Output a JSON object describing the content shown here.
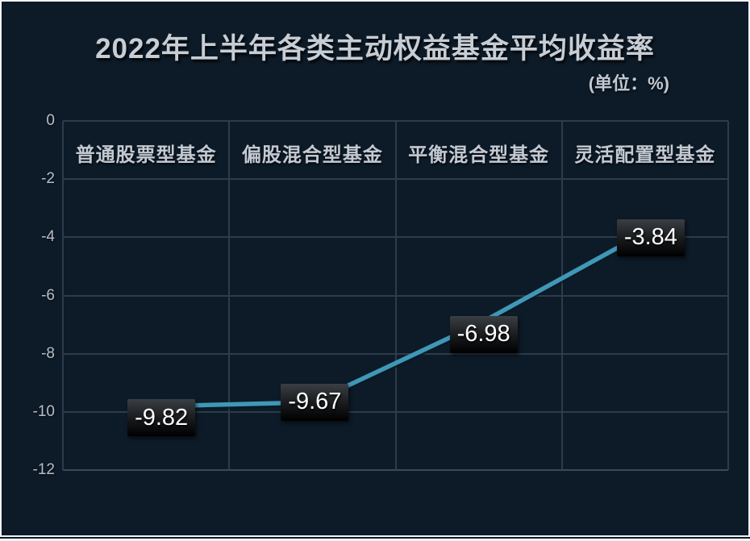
{
  "chart_data": {
    "type": "line",
    "title": "2022年上半年各类主动权益基金平均收益率",
    "unit": "(单位：%)",
    "categories": [
      "普通股票型基金",
      "偏股混合型基金",
      "平衡混合型基金",
      "灵活配置型基金"
    ],
    "values": [
      -9.82,
      -9.67,
      -6.98,
      -3.84
    ],
    "value_labels": [
      "-9.82",
      "-9.67",
      "-6.98",
      "-3.84"
    ],
    "xlabel": "",
    "ylabel": "",
    "ylim": [
      0,
      -12
    ],
    "yticks": [
      0,
      -2,
      -4,
      -6,
      -8,
      -10,
      -12
    ],
    "grid": true,
    "legend": false,
    "colors": {
      "background": "#0d1b28",
      "line": "#4097b6",
      "grid": "#2e3b49",
      "title_text": "#c7cdd5",
      "axis_text": "#b6bdc7",
      "category_text": "#c3c9d2",
      "data_label_text": "#ffffff",
      "data_label_box_top": "#3a3f44",
      "data_label_box_bottom": "#000000",
      "frame_border": "#f2f3f5"
    }
  }
}
